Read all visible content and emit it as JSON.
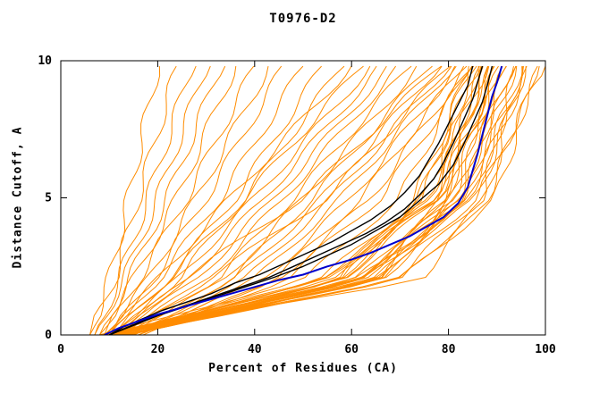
{
  "chart_data": {
    "type": "line",
    "title": "T0976-D2",
    "xlabel": "Percent of Residues (CA)",
    "ylabel": "Distance Cutoff, A",
    "xlim": [
      0,
      100
    ],
    "ylim": [
      0,
      10
    ],
    "x_ticks": [
      0,
      20,
      40,
      60,
      80,
      100
    ],
    "y_ticks": [
      0,
      5,
      10
    ],
    "grid": false,
    "legend": "none",
    "frame_color": "#000000",
    "series": [
      {
        "name": "model-black-1",
        "color": "#000000",
        "width": 1.4,
        "points": [
          [
            10,
            0
          ],
          [
            13,
            0.3
          ],
          [
            17,
            0.6
          ],
          [
            21,
            0.9
          ],
          [
            26,
            1.2
          ],
          [
            31,
            1.5
          ],
          [
            36,
            1.9
          ],
          [
            41,
            2.2
          ],
          [
            46,
            2.6
          ],
          [
            51,
            3.0
          ],
          [
            56,
            3.4
          ],
          [
            60,
            3.8
          ],
          [
            64,
            4.2
          ],
          [
            68,
            4.7
          ],
          [
            71,
            5.2
          ],
          [
            74,
            5.8
          ],
          [
            76,
            6.4
          ],
          [
            78,
            7.0
          ],
          [
            80,
            7.7
          ],
          [
            82,
            8.4
          ],
          [
            84,
            9.1
          ],
          [
            85,
            9.8
          ]
        ]
      },
      {
        "name": "model-black-2",
        "color": "#000000",
        "width": 1.4,
        "points": [
          [
            10,
            0
          ],
          [
            14,
            0.3
          ],
          [
            18,
            0.6
          ],
          [
            23,
            0.9
          ],
          [
            28,
            1.2
          ],
          [
            33,
            1.5
          ],
          [
            38,
            1.8
          ],
          [
            43,
            2.1
          ],
          [
            48,
            2.5
          ],
          [
            53,
            2.9
          ],
          [
            58,
            3.3
          ],
          [
            63,
            3.7
          ],
          [
            67,
            4.1
          ],
          [
            71,
            4.6
          ],
          [
            74,
            5.1
          ],
          [
            77,
            5.7
          ],
          [
            79,
            6.3
          ],
          [
            81,
            7.0
          ],
          [
            83,
            7.8
          ],
          [
            85,
            8.6
          ],
          [
            86,
            9.2
          ],
          [
            87,
            9.8
          ]
        ]
      },
      {
        "name": "model-black-3",
        "color": "#000000",
        "width": 1.4,
        "points": [
          [
            10,
            0
          ],
          [
            15,
            0.35
          ],
          [
            20,
            0.7
          ],
          [
            26,
            1.05
          ],
          [
            32,
            1.4
          ],
          [
            38,
            1.75
          ],
          [
            44,
            2.1
          ],
          [
            50,
            2.5
          ],
          [
            55,
            2.9
          ],
          [
            60,
            3.3
          ],
          [
            65,
            3.8
          ],
          [
            70,
            4.3
          ],
          [
            74,
            4.9
          ],
          [
            78,
            5.5
          ],
          [
            81,
            6.2
          ],
          [
            83,
            6.9
          ],
          [
            85,
            7.7
          ],
          [
            87,
            8.5
          ],
          [
            88,
            9.1
          ],
          [
            89,
            9.8
          ]
        ]
      },
      {
        "name": "model-blue",
        "color": "#0000cd",
        "width": 2.0,
        "points": [
          [
            9,
            0
          ],
          [
            12,
            0.25
          ],
          [
            16,
            0.5
          ],
          [
            20,
            0.75
          ],
          [
            25,
            1.0
          ],
          [
            30,
            1.25
          ],
          [
            35,
            1.5
          ],
          [
            40,
            1.75
          ],
          [
            45,
            2.0
          ],
          [
            50,
            2.2
          ],
          [
            55,
            2.5
          ],
          [
            60,
            2.75
          ],
          [
            64,
            3.0
          ],
          [
            68,
            3.3
          ],
          [
            72,
            3.6
          ],
          [
            76,
            4.0
          ],
          [
            79,
            4.3
          ],
          [
            82,
            4.8
          ],
          [
            84,
            5.4
          ],
          [
            85,
            6.0
          ],
          [
            86,
            6.6
          ],
          [
            87,
            7.3
          ],
          [
            88,
            8.0
          ],
          [
            89,
            8.7
          ],
          [
            90,
            9.2
          ],
          [
            91,
            9.8
          ]
        ]
      }
    ],
    "ensemble": {
      "name": "predictions-orange",
      "color": "#ff8c00",
      "width": 1,
      "control_cutoffs": [
        0,
        2,
        5,
        9.8
      ],
      "lines": [
        [
          6,
          10,
          14,
          20
        ],
        [
          6,
          11,
          16,
          24
        ],
        [
          7,
          12,
          18,
          27
        ],
        [
          7,
          13,
          20,
          30
        ],
        [
          8,
          14,
          22,
          33
        ],
        [
          8,
          15,
          24,
          36
        ],
        [
          9,
          16,
          26,
          40
        ],
        [
          9,
          18,
          28,
          43
        ],
        [
          10,
          19,
          30,
          46
        ],
        [
          10,
          20,
          33,
          50
        ],
        [
          11,
          22,
          36,
          54
        ],
        [
          11,
          24,
          38,
          58
        ],
        [
          9,
          20,
          35,
          60
        ],
        [
          10,
          22,
          38,
          62
        ],
        [
          10,
          24,
          40,
          64
        ],
        [
          11,
          26,
          42,
          66
        ],
        [
          11,
          28,
          44,
          68
        ],
        [
          12,
          30,
          46,
          70
        ],
        [
          12,
          32,
          48,
          72
        ],
        [
          13,
          34,
          50,
          74
        ],
        [
          13,
          35,
          52,
          76
        ],
        [
          14,
          36,
          54,
          78
        ],
        [
          14,
          38,
          56,
          80
        ],
        [
          15,
          40,
          58,
          81
        ],
        [
          15,
          42,
          60,
          82
        ],
        [
          16,
          44,
          62,
          83
        ],
        [
          16,
          45,
          64,
          84
        ],
        [
          17,
          46,
          66,
          85
        ],
        [
          12,
          25,
          50,
          78
        ],
        [
          13,
          30,
          55,
          80
        ],
        [
          8,
          50,
          70,
          84
        ],
        [
          9,
          54,
          76,
          85
        ],
        [
          10,
          58,
          74,
          86
        ],
        [
          11,
          62,
          80,
          87
        ],
        [
          12,
          54,
          78,
          88
        ],
        [
          13,
          58,
          76,
          89
        ],
        [
          14,
          62,
          82,
          90
        ],
        [
          8,
          66,
          80,
          91
        ],
        [
          9,
          58,
          78,
          92
        ],
        [
          10,
          62,
          84,
          93
        ],
        [
          11,
          66,
          82,
          94
        ],
        [
          12,
          70,
          88,
          95
        ],
        [
          13,
          62,
          86,
          96
        ],
        [
          14,
          66,
          84,
          97
        ],
        [
          8,
          70,
          90,
          98
        ],
        [
          9,
          74,
          88,
          99
        ],
        [
          10,
          66,
          86,
          100
        ],
        [
          11,
          53,
          75,
          84
        ],
        [
          12,
          57,
          73,
          85
        ],
        [
          13,
          61,
          79,
          86
        ],
        [
          14,
          53,
          77,
          87
        ],
        [
          8,
          57,
          75,
          88
        ],
        [
          9,
          61,
          81,
          89
        ],
        [
          10,
          65,
          79,
          90
        ],
        [
          11,
          57,
          77,
          91
        ],
        [
          12,
          61,
          83,
          92
        ],
        [
          13,
          65,
          81,
          93
        ],
        [
          14,
          69,
          87,
          94
        ],
        [
          8,
          61,
          85,
          95
        ],
        [
          9,
          65,
          83,
          96
        ]
      ]
    }
  }
}
